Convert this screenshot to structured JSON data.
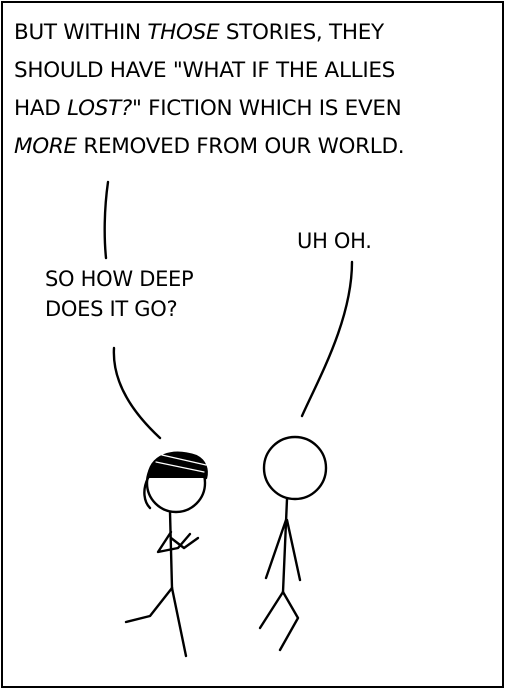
{
  "caption": {
    "line1_a": "BUT WITHIN ",
    "line1_em": "THOSE",
    "line1_b": " STORIES, THEY",
    "line2": "SHOULD HAVE \"WHAT IF THE ALLIES",
    "line3_a": "HAD ",
    "line3_em": "LOST?",
    "line3_b": "\" FICTION WHICH IS EVEN",
    "line4_em": "MORE",
    "line4_b": " REMOVED FROM OUR WORLD."
  },
  "speech_left": {
    "line1": "SO HOW DEEP",
    "line2": "DOES IT GO?"
  },
  "speech_right": {
    "line1": "UH OH."
  }
}
